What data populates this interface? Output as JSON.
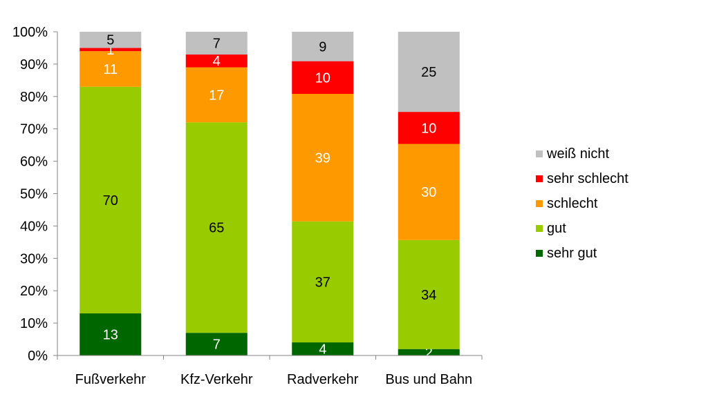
{
  "chart_data": {
    "type": "stacked-bar-100",
    "categories": [
      "Fußverkehr",
      "Kfz-Verkehr",
      "Radverkehr",
      "Bus und Bahn"
    ],
    "series": [
      {
        "name": "sehr gut",
        "color": "#006600",
        "label_color": "#ffffff",
        "values": [
          13,
          7,
          4,
          2
        ]
      },
      {
        "name": "gut",
        "color": "#99cc00",
        "label_color": "#000000",
        "values": [
          70,
          65,
          37,
          34
        ]
      },
      {
        "name": "schlecht",
        "color": "#ff9900",
        "label_color": "#ffffff",
        "values": [
          11,
          17,
          39,
          30
        ]
      },
      {
        "name": "sehr schlecht",
        "color": "#ff0000",
        "label_color": "#ffffff",
        "values": [
          1,
          4,
          10,
          10
        ]
      },
      {
        "name": "weiß nicht",
        "color": "#c0c0c0",
        "label_color": "#000000",
        "values": [
          5,
          7,
          9,
          25
        ]
      }
    ],
    "yticks": [
      "0%",
      "10%",
      "20%",
      "30%",
      "40%",
      "50%",
      "60%",
      "70%",
      "80%",
      "90%",
      "100%"
    ],
    "ylim": [
      0,
      100
    ],
    "legend_position": "right",
    "legend_order": [
      "weiß nicht",
      "sehr schlecht",
      "schlecht",
      "gut",
      "sehr gut"
    ]
  }
}
